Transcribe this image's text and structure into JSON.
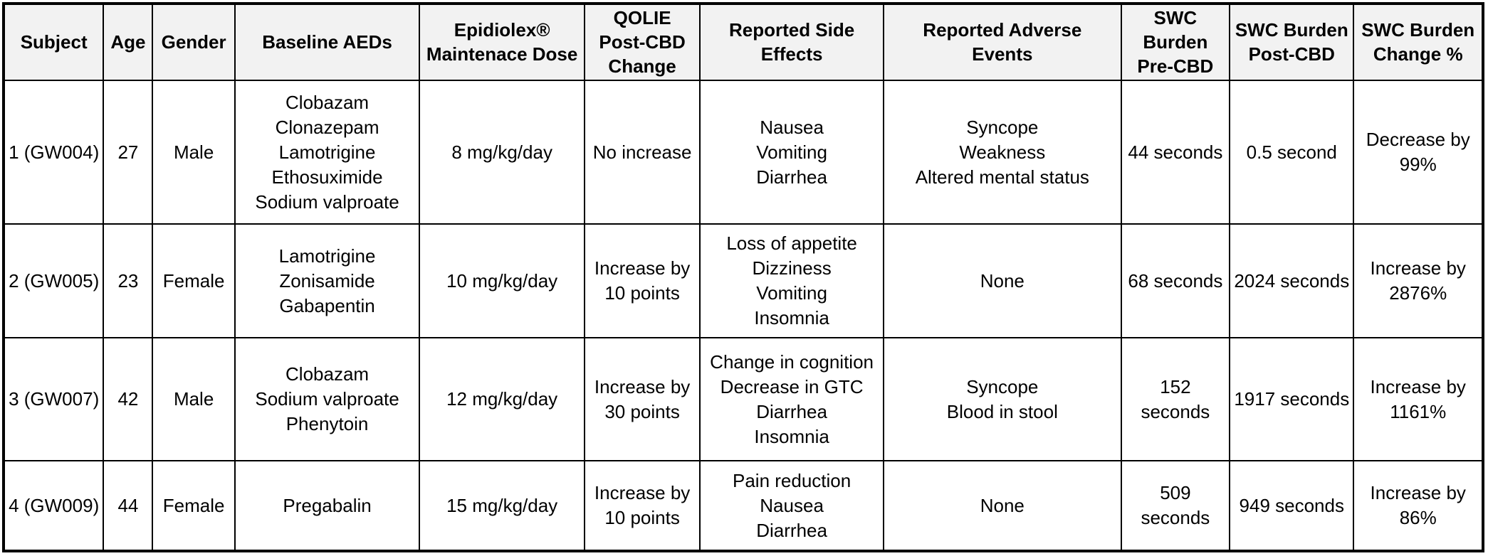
{
  "styles": {
    "header_background": "#f2f2f2",
    "border_color": "#000000",
    "text_color": "#000000",
    "body_background": "#ffffff"
  },
  "chart_data": {
    "type": "table",
    "columns": [
      "Subject",
      "Age",
      "Gender",
      "Baseline AEDs",
      "Epidiolex®\nMaintenace Dose",
      "QOLIE\nPost-CBD\nChange",
      "Reported Side\nEffects",
      "Reported Adverse\nEvents",
      "SWC Burden\nPre-CBD",
      "SWC Burden\nPost-CBD",
      "SWC Burden\nChange %"
    ],
    "rows": [
      [
        "1 (GW004)",
        "27",
        "Male",
        "Clobazam\nClonazepam\nLamotrigine\nEthosuximide\nSodium valproate",
        "8 mg/kg/day",
        "No increase",
        "Nausea\nVomiting\nDiarrhea",
        "Syncope\nWeakness\nAltered mental status",
        "44 seconds",
        "0.5 second",
        "Decrease by\n99%"
      ],
      [
        "2 (GW005)",
        "23",
        "Female",
        "Lamotrigine\nZonisamide\nGabapentin",
        "10 mg/kg/day",
        "Increase by\n10 points",
        "Loss of appetite\nDizziness\nVomiting\nInsomnia",
        "None",
        "68 seconds",
        "2024 seconds",
        "Increase by\n2876%"
      ],
      [
        "3 (GW007)",
        "42",
        "Male",
        "Clobazam\nSodium valproate\nPhenytoin",
        "12 mg/kg/day",
        "Increase by\n30 points",
        "Change in cognition\nDecrease in GTC\nDiarrhea\nInsomnia",
        "Syncope\nBlood in stool",
        "152 seconds",
        "1917 seconds",
        "Increase by\n1161%"
      ],
      [
        "4 (GW009)",
        "44",
        "Female",
        "Pregabalin",
        "15 mg/kg/day",
        "Increase by\n10 points",
        "Pain reduction\nNausea\nDiarrhea",
        "None",
        "509 seconds",
        "949 seconds",
        "Increase by\n86%"
      ]
    ]
  }
}
